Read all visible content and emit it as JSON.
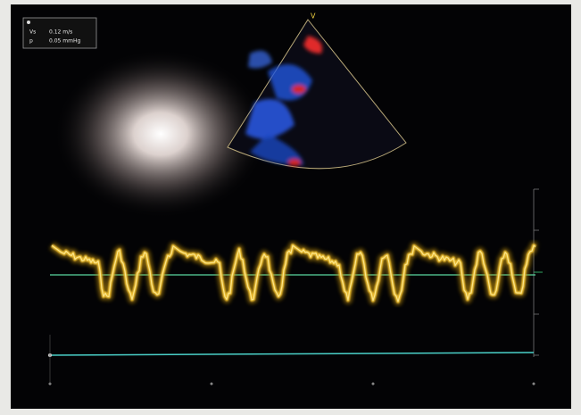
{
  "overlay": {
    "rows": [
      {
        "label": "Vs",
        "value": "0.12 m/s"
      },
      {
        "label": "p",
        "value": "0.05 mmHg"
      }
    ]
  },
  "sector_marker": "V"
}
